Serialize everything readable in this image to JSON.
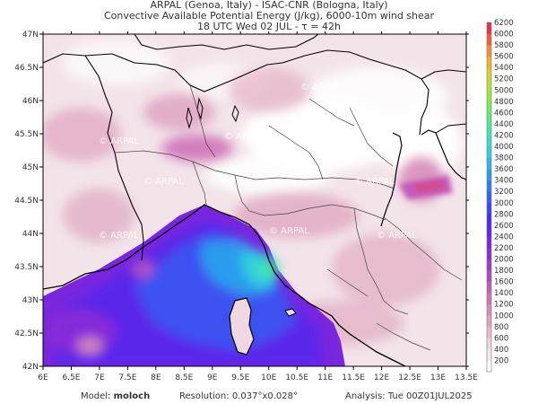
{
  "header": {
    "line1": "ARPAL (Genoa, Italy)  -  ISAC-CNR (Bologna, Italy)",
    "line2": "Convective Available Potential Energy (J/kg), 6000-10m wind shear",
    "line3": "18 UTC Wed 02 JUL  -  τ = 42h"
  },
  "map": {
    "lon_ticks": [
      "6E",
      "6.5E",
      "7E",
      "7.5E",
      "8E",
      "8.5E",
      "9E",
      "9.5E",
      "10E",
      "10.5E",
      "11E",
      "11.5E",
      "12E",
      "12.5E",
      "13E",
      "13.5E"
    ],
    "lat_ticks": [
      "42N",
      "42.5N",
      "43N",
      "43.5N",
      "44N",
      "44.5N",
      "45N",
      "45.5N",
      "46N",
      "46.5N",
      "47N"
    ],
    "watermark": "ARPAL"
  },
  "colorbar": {
    "labels": [
      "200",
      "400",
      "600",
      "800",
      "1000",
      "1200",
      "1400",
      "1600",
      "1800",
      "2000",
      "2200",
      "2400",
      "2600",
      "2800",
      "3000",
      "3200",
      "3400",
      "3600",
      "3800",
      "4000",
      "4200",
      "4400",
      "4600",
      "4800",
      "5000",
      "5200",
      "5400",
      "5600",
      "5800",
      "6000",
      "6200"
    ],
    "colors": [
      "#ffffff",
      "#f4e8ec",
      "#eed4de",
      "#e8bccd",
      "#e0a3c2",
      "#d88bbb",
      "#cf73b8",
      "#c25cbc",
      "#b348c4",
      "#9f38cc",
      "#8a2dd6",
      "#7526e0",
      "#5f25ea",
      "#4a2cf0",
      "#3a44f2",
      "#3060f0",
      "#2c7ef0",
      "#2c9cee",
      "#2cb8e8",
      "#30d0dc",
      "#38e0c4",
      "#44e8a4",
      "#58ec80",
      "#74ec5c",
      "#96e840",
      "#bce030",
      "#dcd02c",
      "#f0b42c",
      "#f48c30",
      "#f06038",
      "#e83048"
    ]
  },
  "footer": {
    "model_label": "Model:",
    "model_value": "moloch",
    "resolution_label": "Resolution:",
    "resolution_value": "0.037°x0.028°",
    "analysis_label": "Analysis:",
    "analysis_value": "Tue 00Z01JUL2025"
  }
}
